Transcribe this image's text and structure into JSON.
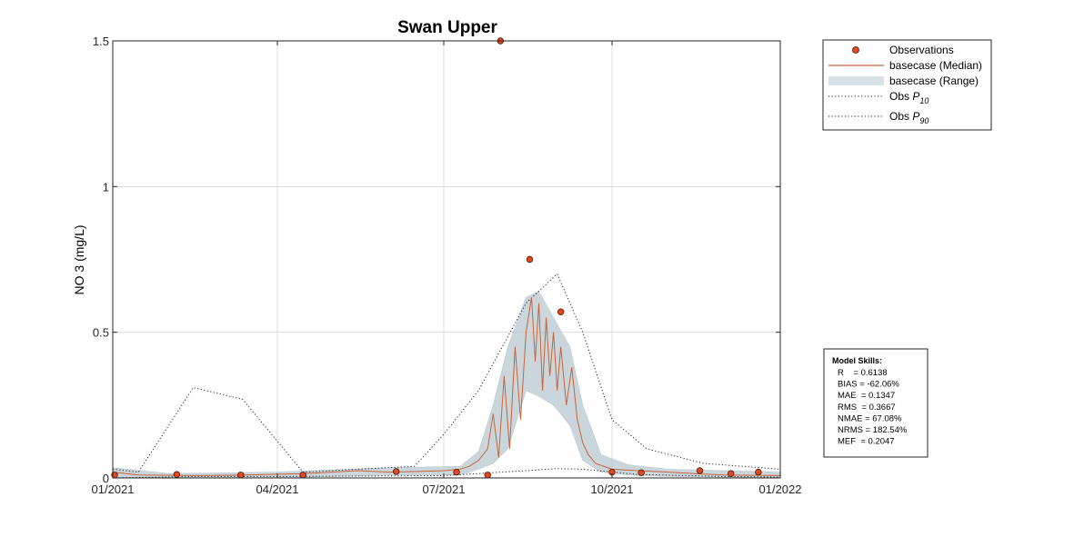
{
  "chart_data": {
    "type": "line",
    "title": "Swan Upper",
    "ylabel": "NO 3 (mg/L)",
    "xlabel": "",
    "xlim": [
      "2021-01-01",
      "2022-01-01"
    ],
    "ylim": [
      0,
      1.5
    ],
    "grid": true,
    "x_ticks": [
      {
        "date": "2021-01-01",
        "label": "01/2021"
      },
      {
        "date": "2021-04-01",
        "label": "04/2021"
      },
      {
        "date": "2021-07-01",
        "label": "07/2021"
      },
      {
        "date": "2021-10-01",
        "label": "10/2021"
      },
      {
        "date": "2022-01-01",
        "label": "01/2022"
      }
    ],
    "y_ticks": [
      {
        "value": 0,
        "label": "0"
      },
      {
        "value": 0.5,
        "label": "0.5"
      },
      {
        "value": 1,
        "label": "1"
      },
      {
        "value": 1.5,
        "label": "1.5"
      }
    ],
    "legend": {
      "position": "outside-top-right",
      "entries": [
        {
          "key": "obs",
          "label": "Observations"
        },
        {
          "key": "median",
          "label": "basecase (Median)"
        },
        {
          "key": "range",
          "label": "basecase (Range)"
        },
        {
          "key": "p10",
          "label": "Obs ",
          "sub": "P",
          "subscript": "10"
        },
        {
          "key": "p90",
          "label": "Obs ",
          "sub": "P",
          "subscript": "90"
        }
      ]
    },
    "colors": {
      "obs_fill": "#e8461a",
      "obs_edge": "#3a1a10",
      "median": "#c8643a",
      "range": "#b8c8d0",
      "percentile": "#222222",
      "grid": "#dcdcdc"
    },
    "series": [
      {
        "name": "Observations",
        "kind": "scatter",
        "points": [
          [
            "2021-01-02",
            0.01
          ],
          [
            "2021-02-05",
            0.012
          ],
          [
            "2021-03-12",
            0.01
          ],
          [
            "2021-04-15",
            0.01
          ],
          [
            "2021-06-05",
            0.022
          ],
          [
            "2021-07-08",
            0.02
          ],
          [
            "2021-07-25",
            0.01
          ],
          [
            "2021-08-01",
            1.5
          ],
          [
            "2021-08-17",
            0.75
          ],
          [
            "2021-09-03",
            0.57
          ],
          [
            "2021-10-01",
            0.02
          ],
          [
            "2021-10-17",
            0.018
          ],
          [
            "2021-11-18",
            0.025
          ],
          [
            "2021-12-05",
            0.015
          ],
          [
            "2021-12-20",
            0.02
          ]
        ]
      },
      {
        "name": "basecase (Median)",
        "kind": "line",
        "points": [
          [
            "2021-01-01",
            0.02
          ],
          [
            "2021-01-15",
            0.01
          ],
          [
            "2021-02-15",
            0.008
          ],
          [
            "2021-03-15",
            0.01
          ],
          [
            "2021-04-15",
            0.015
          ],
          [
            "2021-05-01",
            0.02
          ],
          [
            "2021-05-15",
            0.025
          ],
          [
            "2021-06-01",
            0.02
          ],
          [
            "2021-06-15",
            0.022
          ],
          [
            "2021-07-01",
            0.025
          ],
          [
            "2021-07-10",
            0.03
          ],
          [
            "2021-07-15",
            0.04
          ],
          [
            "2021-07-20",
            0.06
          ],
          [
            "2021-07-25",
            0.1
          ],
          [
            "2021-07-28",
            0.22
          ],
          [
            "2021-07-31",
            0.07
          ],
          [
            "2021-08-03",
            0.35
          ],
          [
            "2021-08-06",
            0.1
          ],
          [
            "2021-08-09",
            0.45
          ],
          [
            "2021-08-12",
            0.2
          ],
          [
            "2021-08-15",
            0.5
          ],
          [
            "2021-08-18",
            0.62
          ],
          [
            "2021-08-20",
            0.4
          ],
          [
            "2021-08-22",
            0.6
          ],
          [
            "2021-08-24",
            0.3
          ],
          [
            "2021-08-26",
            0.55
          ],
          [
            "2021-08-28",
            0.35
          ],
          [
            "2021-08-30",
            0.5
          ],
          [
            "2021-09-01",
            0.3
          ],
          [
            "2021-09-03",
            0.45
          ],
          [
            "2021-09-06",
            0.25
          ],
          [
            "2021-09-09",
            0.38
          ],
          [
            "2021-09-12",
            0.2
          ],
          [
            "2021-09-15",
            0.12
          ],
          [
            "2021-09-18",
            0.08
          ],
          [
            "2021-09-22",
            0.05
          ],
          [
            "2021-10-01",
            0.03
          ],
          [
            "2021-10-15",
            0.025
          ],
          [
            "2021-11-01",
            0.02
          ],
          [
            "2021-11-15",
            0.015
          ],
          [
            "2021-12-01",
            0.01
          ],
          [
            "2022-01-01",
            0.008
          ]
        ]
      },
      {
        "name": "basecase (Range)",
        "kind": "band",
        "points": [
          [
            "2021-01-01",
            0.0,
            0.035
          ],
          [
            "2021-02-01",
            0.0,
            0.015
          ],
          [
            "2021-04-01",
            0.0,
            0.02
          ],
          [
            "2021-06-01",
            0.01,
            0.035
          ],
          [
            "2021-07-10",
            0.01,
            0.04
          ],
          [
            "2021-07-20",
            0.03,
            0.09
          ],
          [
            "2021-07-28",
            0.05,
            0.25
          ],
          [
            "2021-08-05",
            0.1,
            0.45
          ],
          [
            "2021-08-15",
            0.3,
            0.62
          ],
          [
            "2021-08-22",
            0.28,
            0.64
          ],
          [
            "2021-08-30",
            0.25,
            0.55
          ],
          [
            "2021-09-08",
            0.18,
            0.45
          ],
          [
            "2021-09-15",
            0.06,
            0.25
          ],
          [
            "2021-09-25",
            0.02,
            0.08
          ],
          [
            "2021-10-10",
            0.01,
            0.045
          ],
          [
            "2021-11-01",
            0.005,
            0.03
          ],
          [
            "2022-01-01",
            0.0,
            0.02
          ]
        ]
      },
      {
        "name": "Obs P10",
        "kind": "dotted",
        "points": [
          [
            "2021-01-01",
            0.0
          ],
          [
            "2021-02-15",
            0.005
          ],
          [
            "2021-04-01",
            0.005
          ],
          [
            "2021-07-01",
            0.008
          ],
          [
            "2021-08-15",
            0.025
          ],
          [
            "2021-09-01",
            0.032
          ],
          [
            "2021-09-15",
            0.03
          ],
          [
            "2021-10-15",
            0.012
          ],
          [
            "2021-12-01",
            0.005
          ],
          [
            "2022-01-01",
            0.003
          ]
        ]
      },
      {
        "name": "Obs P90",
        "kind": "dotted",
        "points": [
          [
            "2021-01-01",
            0.03
          ],
          [
            "2021-01-15",
            0.02
          ],
          [
            "2021-02-14",
            0.31
          ],
          [
            "2021-03-13",
            0.27
          ],
          [
            "2021-04-15",
            0.02
          ],
          [
            "2021-05-15",
            0.03
          ],
          [
            "2021-06-15",
            0.04
          ],
          [
            "2021-07-01",
            0.15
          ],
          [
            "2021-07-20",
            0.3
          ],
          [
            "2021-08-02",
            0.45
          ],
          [
            "2021-08-15",
            0.6
          ],
          [
            "2021-09-01",
            0.7
          ],
          [
            "2021-09-15",
            0.5
          ],
          [
            "2021-10-01",
            0.2
          ],
          [
            "2021-10-20",
            0.1
          ],
          [
            "2021-11-20",
            0.05
          ],
          [
            "2022-01-01",
            0.03
          ]
        ]
      }
    ],
    "model_skills": {
      "title": "Model Skills:",
      "lines": [
        "R    = 0.6138",
        "BIAS = -62.06%",
        "MAE  = 0.1347",
        "RMS  = 0.3667",
        "NMAE = 67.08%",
        "NRMS = 182.54%",
        "MEF  = 0.2047"
      ]
    }
  }
}
